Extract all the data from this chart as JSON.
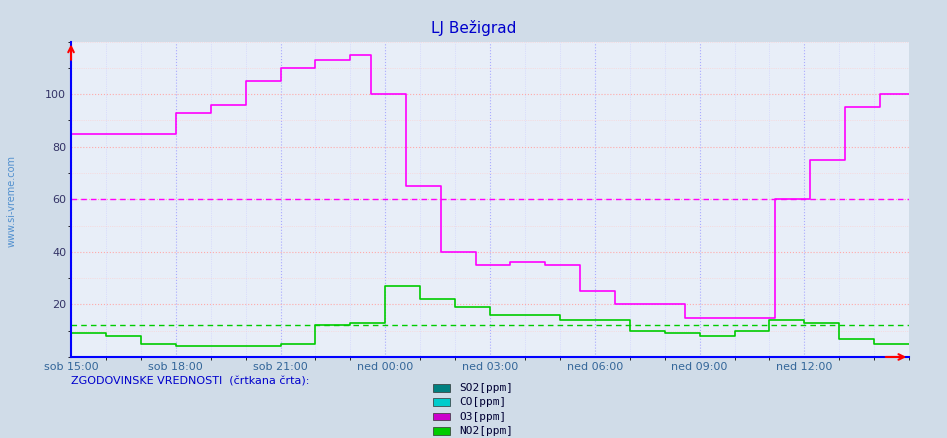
{
  "title": "LJ Bežigrad",
  "title_color": "#0000cc",
  "bg_color": "#d0dce8",
  "plot_bg_color": "#e8eef8",
  "ylabel_left_text": "www.si-vreme.com",
  "footer_text": "ZGODOVINSKE VREDNOSTI  (črtkana črta):",
  "legend_items": [
    "SO2[ppm]",
    "CO[ppm]",
    "O3[ppm]",
    "NO2[ppm]"
  ],
  "legend_colors": [
    "#008080",
    "#00cccc",
    "#cc00cc",
    "#00cc00"
  ],
  "x_tick_labels": [
    "sob 15:00",
    "sob 18:00",
    "sob 21:00",
    "ned 00:00",
    "ned 03:00",
    "ned 06:00",
    "ned 09:00",
    "ned 12:00"
  ],
  "x_tick_positions": [
    0,
    36,
    72,
    108,
    144,
    180,
    216,
    252
  ],
  "total_points": 289,
  "ylim": [
    0,
    120
  ],
  "yticks": [
    20,
    40,
    60,
    80,
    100
  ],
  "o3_color": "#ff00ff",
  "no2_color": "#00cc00",
  "so2_color": "#008080",
  "co_color": "#00cccc",
  "o3_data": [
    85,
    85,
    85,
    85,
    85,
    85,
    85,
    85,
    85,
    85,
    85,
    85,
    85,
    85,
    85,
    85,
    85,
    85,
    85,
    85,
    85,
    85,
    85,
    85,
    85,
    85,
    85,
    85,
    85,
    85,
    85,
    85,
    85,
    85,
    85,
    85,
    93,
    93,
    93,
    93,
    93,
    93,
    93,
    93,
    93,
    93,
    93,
    93,
    96,
    96,
    96,
    96,
    96,
    96,
    96,
    96,
    96,
    96,
    96,
    96,
    105,
    105,
    105,
    105,
    105,
    105,
    105,
    105,
    105,
    105,
    105,
    105,
    110,
    110,
    110,
    110,
    110,
    110,
    110,
    110,
    110,
    110,
    110,
    110,
    113,
    113,
    113,
    113,
    113,
    113,
    113,
    113,
    113,
    113,
    113,
    113,
    115,
    115,
    115,
    115,
    115,
    115,
    115,
    100,
    100,
    100,
    100,
    100,
    100,
    100,
    100,
    100,
    100,
    100,
    100,
    65,
    65,
    65,
    65,
    65,
    65,
    65,
    65,
    65,
    65,
    65,
    65,
    40,
    40,
    40,
    40,
    40,
    40,
    40,
    40,
    40,
    40,
    40,
    40,
    35,
    35,
    35,
    35,
    35,
    35,
    35,
    35,
    35,
    35,
    35,
    35,
    36,
    36,
    36,
    36,
    36,
    36,
    36,
    36,
    36,
    36,
    36,
    36,
    35,
    35,
    35,
    35,
    35,
    35,
    35,
    35,
    35,
    35,
    35,
    35,
    25,
    25,
    25,
    25,
    25,
    25,
    25,
    25,
    25,
    25,
    25,
    25,
    20,
    20,
    20,
    20,
    20,
    20,
    20,
    20,
    20,
    20,
    20,
    20,
    20,
    20,
    20,
    20,
    20,
    20,
    20,
    20,
    20,
    20,
    20,
    20,
    15,
    15,
    15,
    15,
    15,
    15,
    15,
    15,
    15,
    15,
    15,
    15,
    15,
    15,
    15,
    15,
    15,
    15,
    15,
    15,
    15,
    15,
    15,
    15,
    15,
    15,
    15,
    15,
    15,
    15,
    15,
    60,
    60,
    60,
    60,
    60,
    60,
    60,
    60,
    60,
    60,
    60,
    60,
    75,
    75,
    75,
    75,
    75,
    75,
    75,
    75,
    75,
    75,
    75,
    75,
    95,
    95,
    95,
    95,
    95,
    95,
    95,
    95,
    95,
    95,
    95,
    95,
    100,
    100,
    100,
    100,
    100,
    100,
    100,
    100,
    100,
    100,
    100
  ],
  "no2_data": [
    9,
    9,
    9,
    9,
    9,
    9,
    9,
    9,
    9,
    9,
    9,
    9,
    8,
    8,
    8,
    8,
    8,
    8,
    8,
    8,
    8,
    8,
    8,
    8,
    5,
    5,
    5,
    5,
    5,
    5,
    5,
    5,
    5,
    5,
    5,
    5,
    4,
    4,
    4,
    4,
    4,
    4,
    4,
    4,
    4,
    4,
    4,
    4,
    4,
    4,
    4,
    4,
    4,
    4,
    4,
    4,
    4,
    4,
    4,
    4,
    4,
    4,
    4,
    4,
    4,
    4,
    4,
    4,
    4,
    4,
    4,
    4,
    5,
    5,
    5,
    5,
    5,
    5,
    5,
    5,
    5,
    5,
    5,
    5,
    12,
    12,
    12,
    12,
    12,
    12,
    12,
    12,
    12,
    12,
    12,
    12,
    13,
    13,
    13,
    13,
    13,
    13,
    13,
    13,
    13,
    13,
    13,
    13,
    27,
    27,
    27,
    27,
    27,
    27,
    27,
    27,
    27,
    27,
    27,
    27,
    22,
    22,
    22,
    22,
    22,
    22,
    22,
    22,
    22,
    22,
    22,
    22,
    19,
    19,
    19,
    19,
    19,
    19,
    19,
    19,
    19,
    19,
    19,
    19,
    16,
    16,
    16,
    16,
    16,
    16,
    16,
    16,
    16,
    16,
    16,
    16,
    16,
    16,
    16,
    16,
    16,
    16,
    16,
    16,
    16,
    16,
    16,
    16,
    14,
    14,
    14,
    14,
    14,
    14,
    14,
    14,
    14,
    14,
    14,
    14,
    14,
    14,
    14,
    14,
    14,
    14,
    14,
    14,
    14,
    14,
    14,
    14,
    10,
    10,
    10,
    10,
    10,
    10,
    10,
    10,
    10,
    10,
    10,
    10,
    9,
    9,
    9,
    9,
    9,
    9,
    9,
    9,
    9,
    9,
    9,
    9,
    8,
    8,
    8,
    8,
    8,
    8,
    8,
    8,
    8,
    8,
    8,
    8,
    10,
    10,
    10,
    10,
    10,
    10,
    10,
    10,
    10,
    10,
    10,
    10,
    14,
    14,
    14,
    14,
    14,
    14,
    14,
    14,
    14,
    14,
    14,
    14,
    13,
    13,
    13,
    13,
    13,
    13,
    13,
    13,
    13,
    13,
    13,
    13,
    7,
    7,
    7,
    7,
    7,
    7,
    7,
    7,
    7,
    7,
    7,
    7,
    5,
    5,
    5,
    5,
    5,
    5,
    5,
    5,
    5,
    5,
    5,
    5,
    5
  ],
  "so2_data": [
    0,
    0,
    0,
    0,
    0,
    0,
    0,
    0,
    0,
    0,
    0,
    0,
    0,
    0,
    0,
    0,
    0,
    0,
    0,
    0,
    0,
    0,
    0,
    0,
    0,
    0,
    0,
    0,
    0,
    0,
    0,
    0,
    0,
    0,
    0,
    0,
    0,
    0,
    0,
    0,
    0,
    0,
    0,
    0,
    0,
    0,
    0,
    0,
    0,
    0,
    0,
    0,
    0,
    0,
    0,
    0,
    0,
    0,
    0,
    0,
    0,
    0,
    0,
    0,
    0,
    0,
    0,
    0,
    0,
    0,
    0,
    0,
    0,
    0,
    0,
    0,
    0,
    0,
    0,
    0,
    0,
    0,
    0,
    0,
    0,
    0,
    0,
    0,
    0,
    0,
    0,
    0,
    0,
    0,
    0,
    0,
    0,
    0,
    0,
    0,
    0,
    0,
    0,
    0,
    0,
    0,
    0,
    0,
    0,
    0,
    0,
    0,
    0,
    0,
    0,
    0,
    0,
    0,
    0,
    0,
    0,
    0,
    0,
    0,
    0,
    0,
    0,
    0,
    0,
    0,
    0,
    0,
    0,
    0,
    0,
    0,
    0,
    0,
    0,
    0,
    0,
    0,
    0,
    0,
    0,
    0,
    0,
    0,
    0,
    0,
    0,
    0,
    0,
    0,
    0,
    0,
    0,
    0,
    0,
    0,
    0,
    0,
    0,
    0,
    0,
    0,
    0,
    0,
    0,
    0,
    0,
    0,
    0,
    0,
    0,
    0,
    0,
    0,
    0,
    0,
    0,
    0,
    0,
    0,
    0,
    0,
    0,
    0,
    0,
    0,
    0,
    0,
    0,
    0,
    0,
    0,
    0,
    0,
    0,
    0,
    0,
    0,
    0,
    0,
    0,
    0,
    0,
    0,
    0,
    0,
    0,
    0,
    0,
    0,
    0,
    0,
    0,
    0,
    0,
    0,
    0,
    0,
    0,
    0,
    0,
    0,
    0,
    0,
    0,
    0,
    0,
    0,
    0,
    0,
    0,
    0,
    0,
    0,
    0,
    0,
    0,
    0,
    0,
    0,
    0,
    0,
    0,
    0,
    0,
    0,
    0,
    0,
    0,
    0,
    0,
    0,
    0,
    0,
    0,
    0,
    0,
    0,
    0,
    0,
    0,
    0,
    0,
    0,
    0,
    0,
    0,
    0,
    0,
    0,
    0,
    0,
    0,
    0,
    0,
    0,
    0,
    0,
    0,
    0,
    0,
    0,
    0,
    0,
    0
  ],
  "co_data": [
    0,
    0,
    0,
    0,
    0,
    0,
    0,
    0,
    0,
    0,
    0,
    0,
    0,
    0,
    0,
    0,
    0,
    0,
    0,
    0,
    0,
    0,
    0,
    0,
    0,
    0,
    0,
    0,
    0,
    0,
    0,
    0,
    0,
    0,
    0,
    0,
    0,
    0,
    0,
    0,
    0,
    0,
    0,
    0,
    0,
    0,
    0,
    0,
    0,
    0,
    0,
    0,
    0,
    0,
    0,
    0,
    0,
    0,
    0,
    0,
    0,
    0,
    0,
    0,
    0,
    0,
    0,
    0,
    0,
    0,
    0,
    0,
    0,
    0,
    0,
    0,
    0,
    0,
    0,
    0,
    0,
    0,
    0,
    0,
    0,
    0,
    0,
    0,
    0,
    0,
    0,
    0,
    0,
    0,
    0,
    0,
    0,
    0,
    0,
    0,
    0,
    0,
    0,
    0,
    0,
    0,
    0,
    0,
    0,
    0,
    0,
    0,
    0,
    0,
    0,
    0,
    0,
    0,
    0,
    0,
    0,
    0,
    0,
    0,
    0,
    0,
    0,
    0,
    0,
    0,
    0,
    0,
    0,
    0,
    0,
    0,
    0,
    0,
    0,
    0,
    0,
    0,
    0,
    0,
    0,
    0,
    0,
    0,
    0,
    0,
    0,
    0,
    0,
    0,
    0,
    0,
    0,
    0,
    0,
    0,
    0,
    0,
    0,
    0,
    0,
    0,
    0,
    0,
    0,
    0,
    0,
    0,
    0,
    0,
    0,
    0,
    0,
    0,
    0,
    0,
    0,
    0,
    0,
    0,
    0,
    0,
    0,
    0,
    0,
    0,
    0,
    0,
    0,
    0,
    0,
    0,
    0,
    0,
    0,
    0,
    0,
    0,
    0,
    0,
    0,
    0,
    0,
    0,
    0,
    0,
    0,
    0,
    0,
    0,
    0,
    0,
    0,
    0,
    0,
    0,
    0,
    0,
    0,
    0,
    0,
    0,
    0,
    0,
    0,
    0,
    0,
    0,
    0,
    0,
    0,
    0,
    0,
    0,
    0,
    0,
    0,
    0,
    0,
    0,
    0,
    0,
    0,
    0,
    0,
    0,
    0,
    0,
    0,
    0,
    0,
    0,
    0,
    0,
    0,
    0,
    0,
    0,
    0,
    0,
    0,
    0,
    0,
    0,
    0,
    0,
    0,
    0,
    0,
    0,
    0,
    0,
    0,
    0,
    0,
    0,
    0,
    0,
    0,
    0,
    0,
    0,
    0,
    0,
    0
  ],
  "no2_hist_val": 12,
  "o3_hist_val": 60
}
